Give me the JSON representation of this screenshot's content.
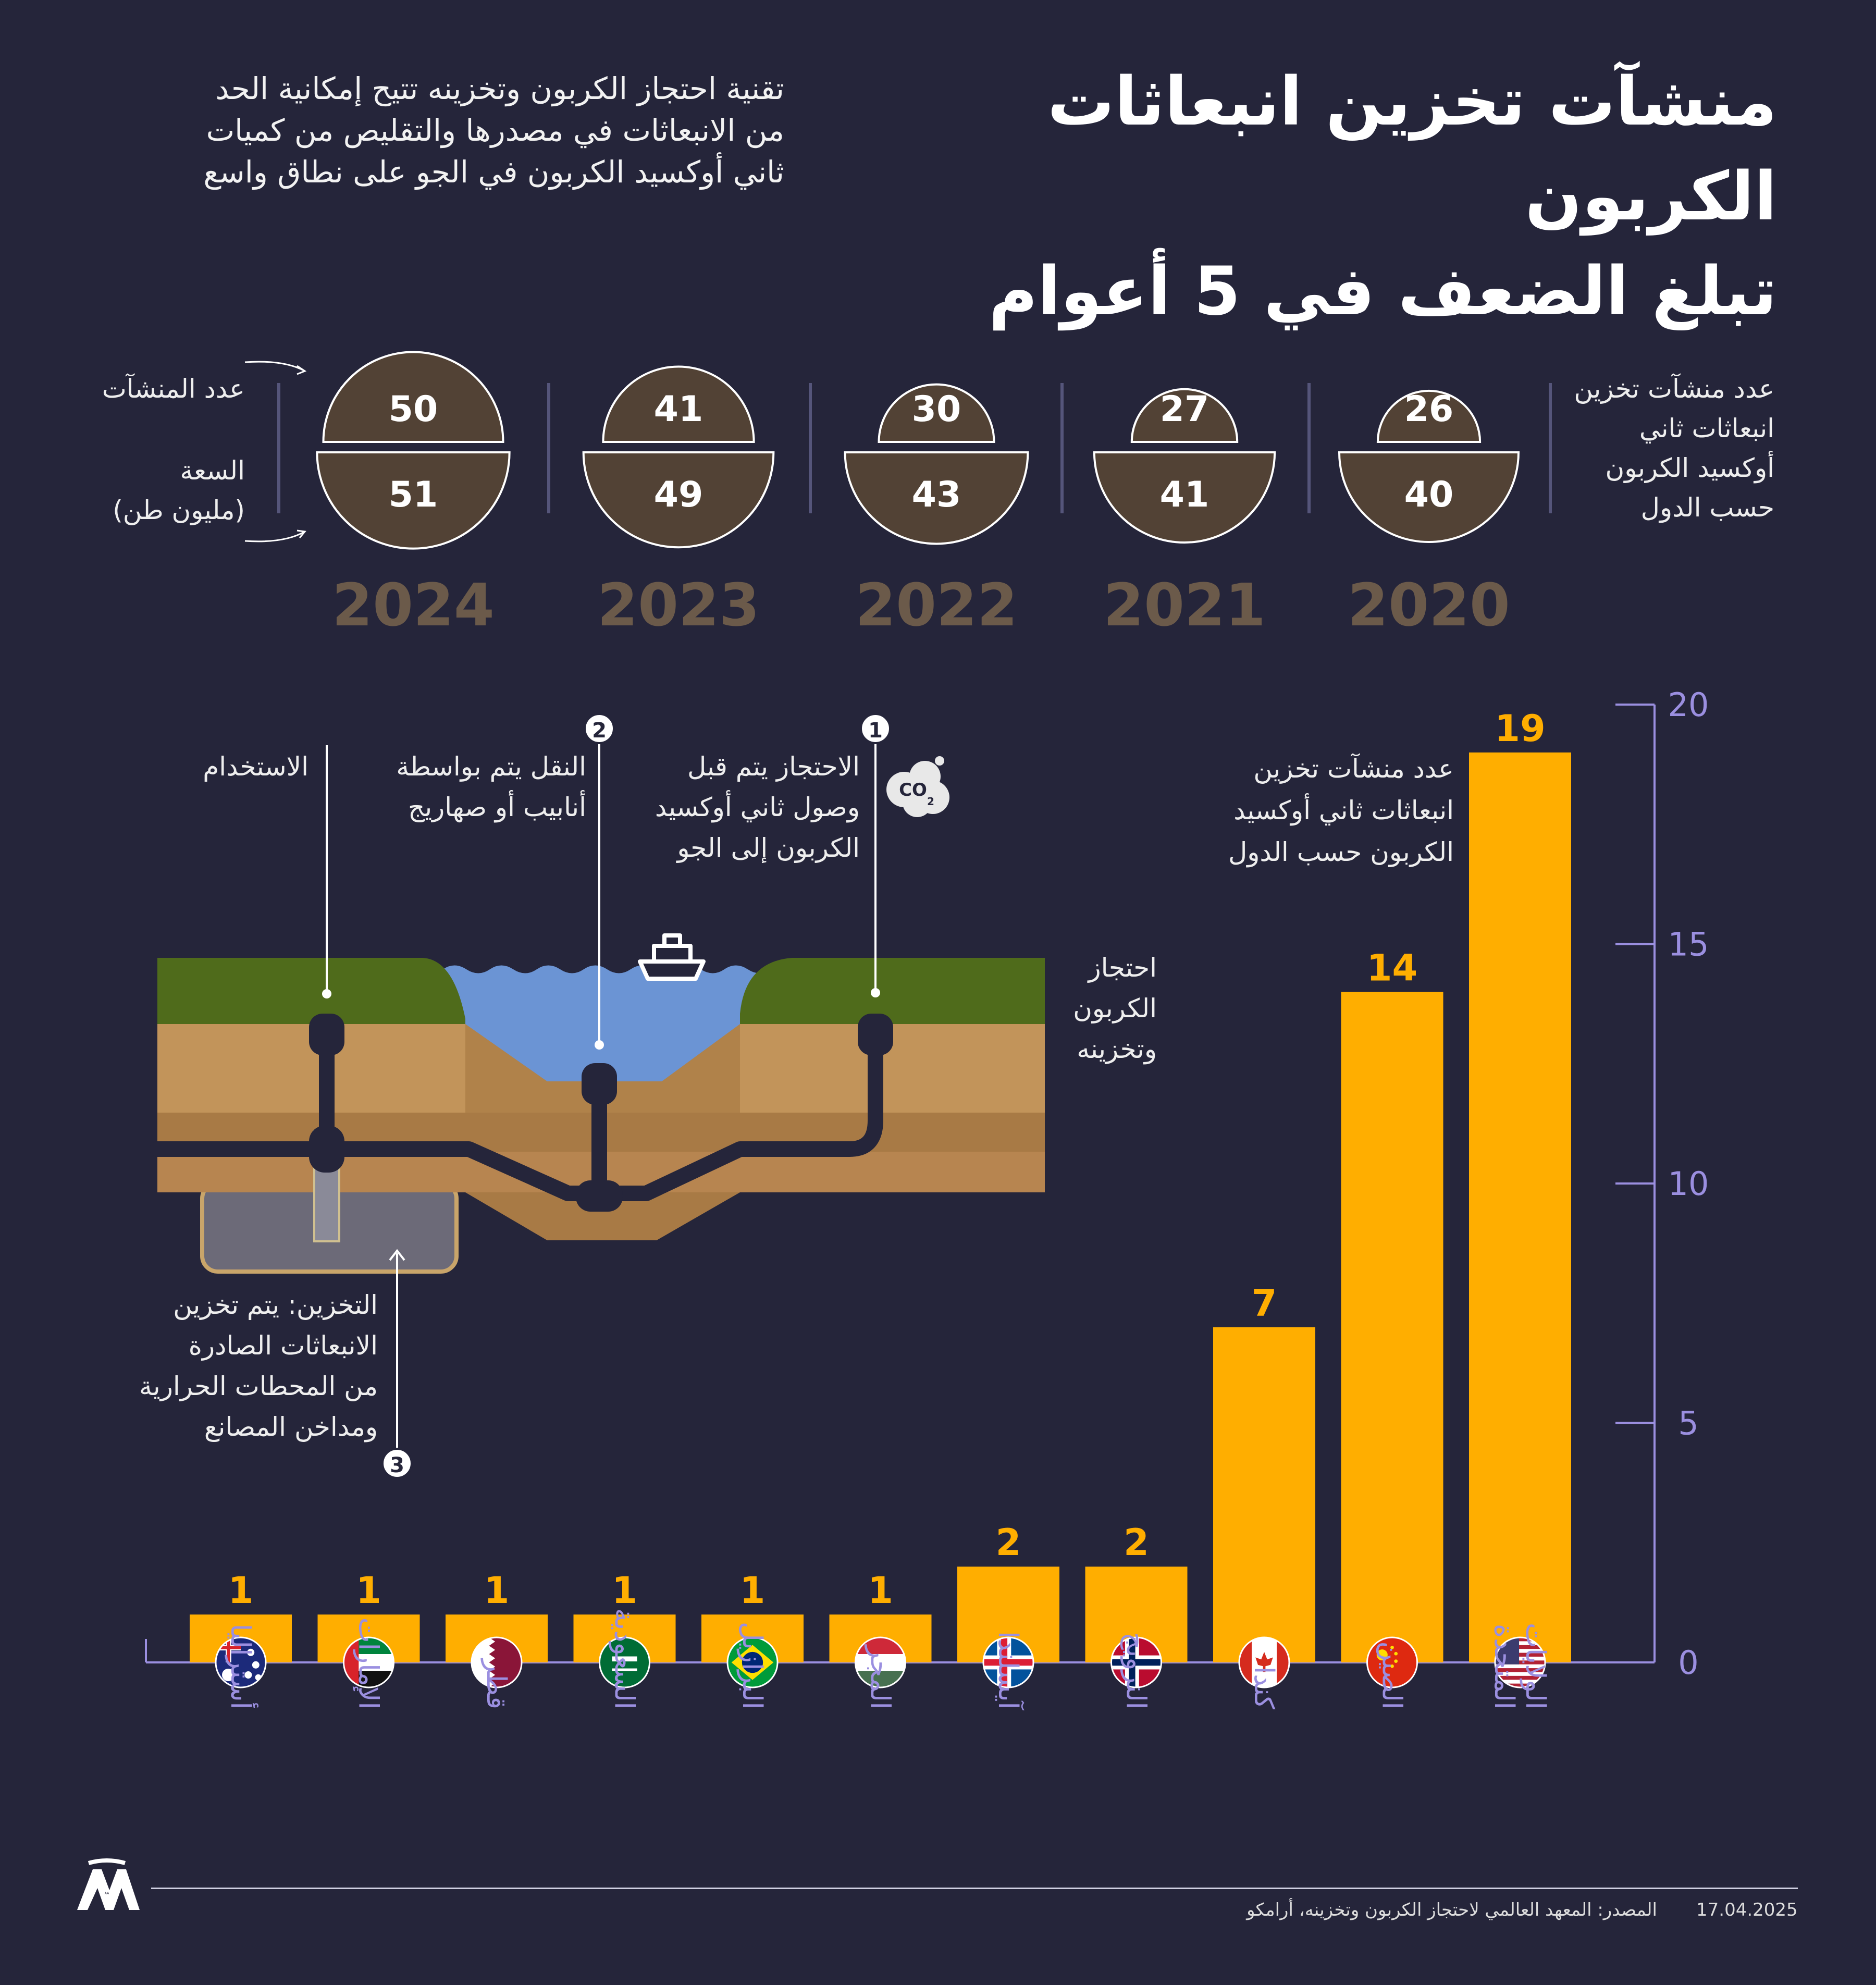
{
  "title_lines": [
    "منشآت تخزين انبعاثات الكربون",
    "تبلغ الضعف في 5 أعوام"
  ],
  "subtitle_lines": [
    "تقنية احتجاز الكربون وتخزينه تتيح إمكانية الحد",
    "من الانبعاثات في مصدرها والتقليص من كميات",
    "ثاني أوكسيد الكربون في الجو على نطاق واسع"
  ],
  "yearly": {
    "right_label_lines": [
      "عدد منشآت تخزين",
      "انبعاثات ثاني",
      "أوكسيد الكربون",
      "حسب الدول"
    ],
    "facilities_label": "عدد المنشآت",
    "capacity_label_lines": [
      "السعة",
      "(مليون طن)"
    ],
    "years": [
      {
        "year": "2024",
        "facilities": 50,
        "capacity": 51
      },
      {
        "year": "2023",
        "facilities": 41,
        "capacity": 49
      },
      {
        "year": "2022",
        "facilities": 30,
        "capacity": 43
      },
      {
        "year": "2021",
        "facilities": 27,
        "capacity": 41
      },
      {
        "year": "2020",
        "facilities": 26,
        "capacity": 40
      }
    ]
  },
  "diagram": {
    "step1_lines": [
      "الاحتجاز يتم قبل",
      "وصول ثاني أوكسيد",
      "الكربون إلى الجو"
    ],
    "step2_lines": [
      "النقل يتم بواسطة",
      "أنابيب أو صهاريج"
    ],
    "usage": "الاستخدام",
    "step3_lines": [
      "التخزين: يتم تخزين",
      "الانبعاثات الصادرة",
      "من المحطات الحرارية",
      "ومداخن المصانع"
    ],
    "side_label_lines": [
      "احتجاز",
      "الكربون",
      "وتخزينه"
    ],
    "co2": "CO",
    "co2_sub": "2",
    "badges": [
      "1",
      "2",
      "3"
    ]
  },
  "chart_data": {
    "type": "bar",
    "title": "",
    "annotation_lines": [
      "عدد منشآت تخزين",
      "انبعاثات ثاني أوكسيد",
      "الكربون حسب الدول"
    ],
    "categories": [
      "أستراليا",
      "الإمارات",
      "قطر",
      "السعودية",
      "البرازيل",
      "المجر",
      "آيسلندا",
      "النرويج",
      "كندا",
      "الصين",
      "الولايات المتحدة"
    ],
    "category_lines": [
      [
        "أستراليا"
      ],
      [
        "الإمارات"
      ],
      [
        "قطر"
      ],
      [
        "السعودية"
      ],
      [
        "البرازيل"
      ],
      [
        "المجر"
      ],
      [
        "آيسلندا"
      ],
      [
        "النرويج"
      ],
      [
        "كندا"
      ],
      [
        "الصين"
      ],
      [
        "الولايات",
        "المتحدة"
      ]
    ],
    "values": [
      1,
      1,
      1,
      1,
      1,
      1,
      2,
      2,
      7,
      14,
      19
    ],
    "ylim": [
      0,
      20
    ],
    "yticks": [
      0,
      5,
      10,
      15,
      20
    ],
    "flags": [
      "australia-flag",
      "uae-flag",
      "qatar-flag",
      "saudi-flag",
      "brazil-flag",
      "hungary-flag",
      "iceland-flag",
      "norway-flag",
      "canada-flag",
      "china-flag",
      "usa-flag"
    ],
    "bar_color": "#ffae00",
    "axis_color": "#9b8fe0"
  },
  "footer": {
    "date": "17.04.2025",
    "source": "المصدر: المعهد العالمي لاحتجاز الكربون وتخزينه، أرامكو",
    "logo": "AA"
  }
}
